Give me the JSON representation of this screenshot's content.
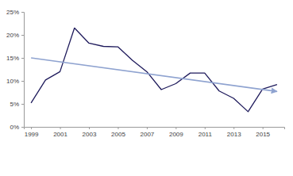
{
  "chart_data": {
    "type": "line",
    "x": [
      1999,
      2000,
      2001,
      2002,
      2003,
      2004,
      2005,
      2006,
      2007,
      2008,
      2009,
      2010,
      2011,
      2012,
      2013,
      2014,
      2015,
      2016
    ],
    "series": [
      {
        "color": "#1f1b5c",
        "values": [
          5.2,
          10.2,
          12,
          21.5,
          18.2,
          17.5,
          17.4,
          14.5,
          12,
          8.1,
          9.4,
          11.7,
          11.7,
          7.8,
          6.2,
          3.3,
          8.2,
          9.2
        ]
      },
      {
        "color": "#8fa3d0",
        "marker": "arrow",
        "x": [
          1999,
          2016
        ],
        "values": [
          15,
          7.7
        ]
      }
    ],
    "xlim": [
      1998.5,
      2016.5
    ],
    "xticks": [
      1999,
      2001,
      2003,
      2005,
      2007,
      2009,
      2011,
      2013,
      2015
    ],
    "ylim": [
      0,
      25
    ],
    "yticks": [
      {
        "value": 0,
        "label": "0%"
      },
      {
        "value": 5,
        "label": "5%"
      },
      {
        "value": 10,
        "label": "10%"
      },
      {
        "value": 15,
        "label": "15%"
      },
      {
        "value": 20,
        "label": "20%"
      },
      {
        "value": 25,
        "label": "25%"
      }
    ],
    "grid": false
  }
}
